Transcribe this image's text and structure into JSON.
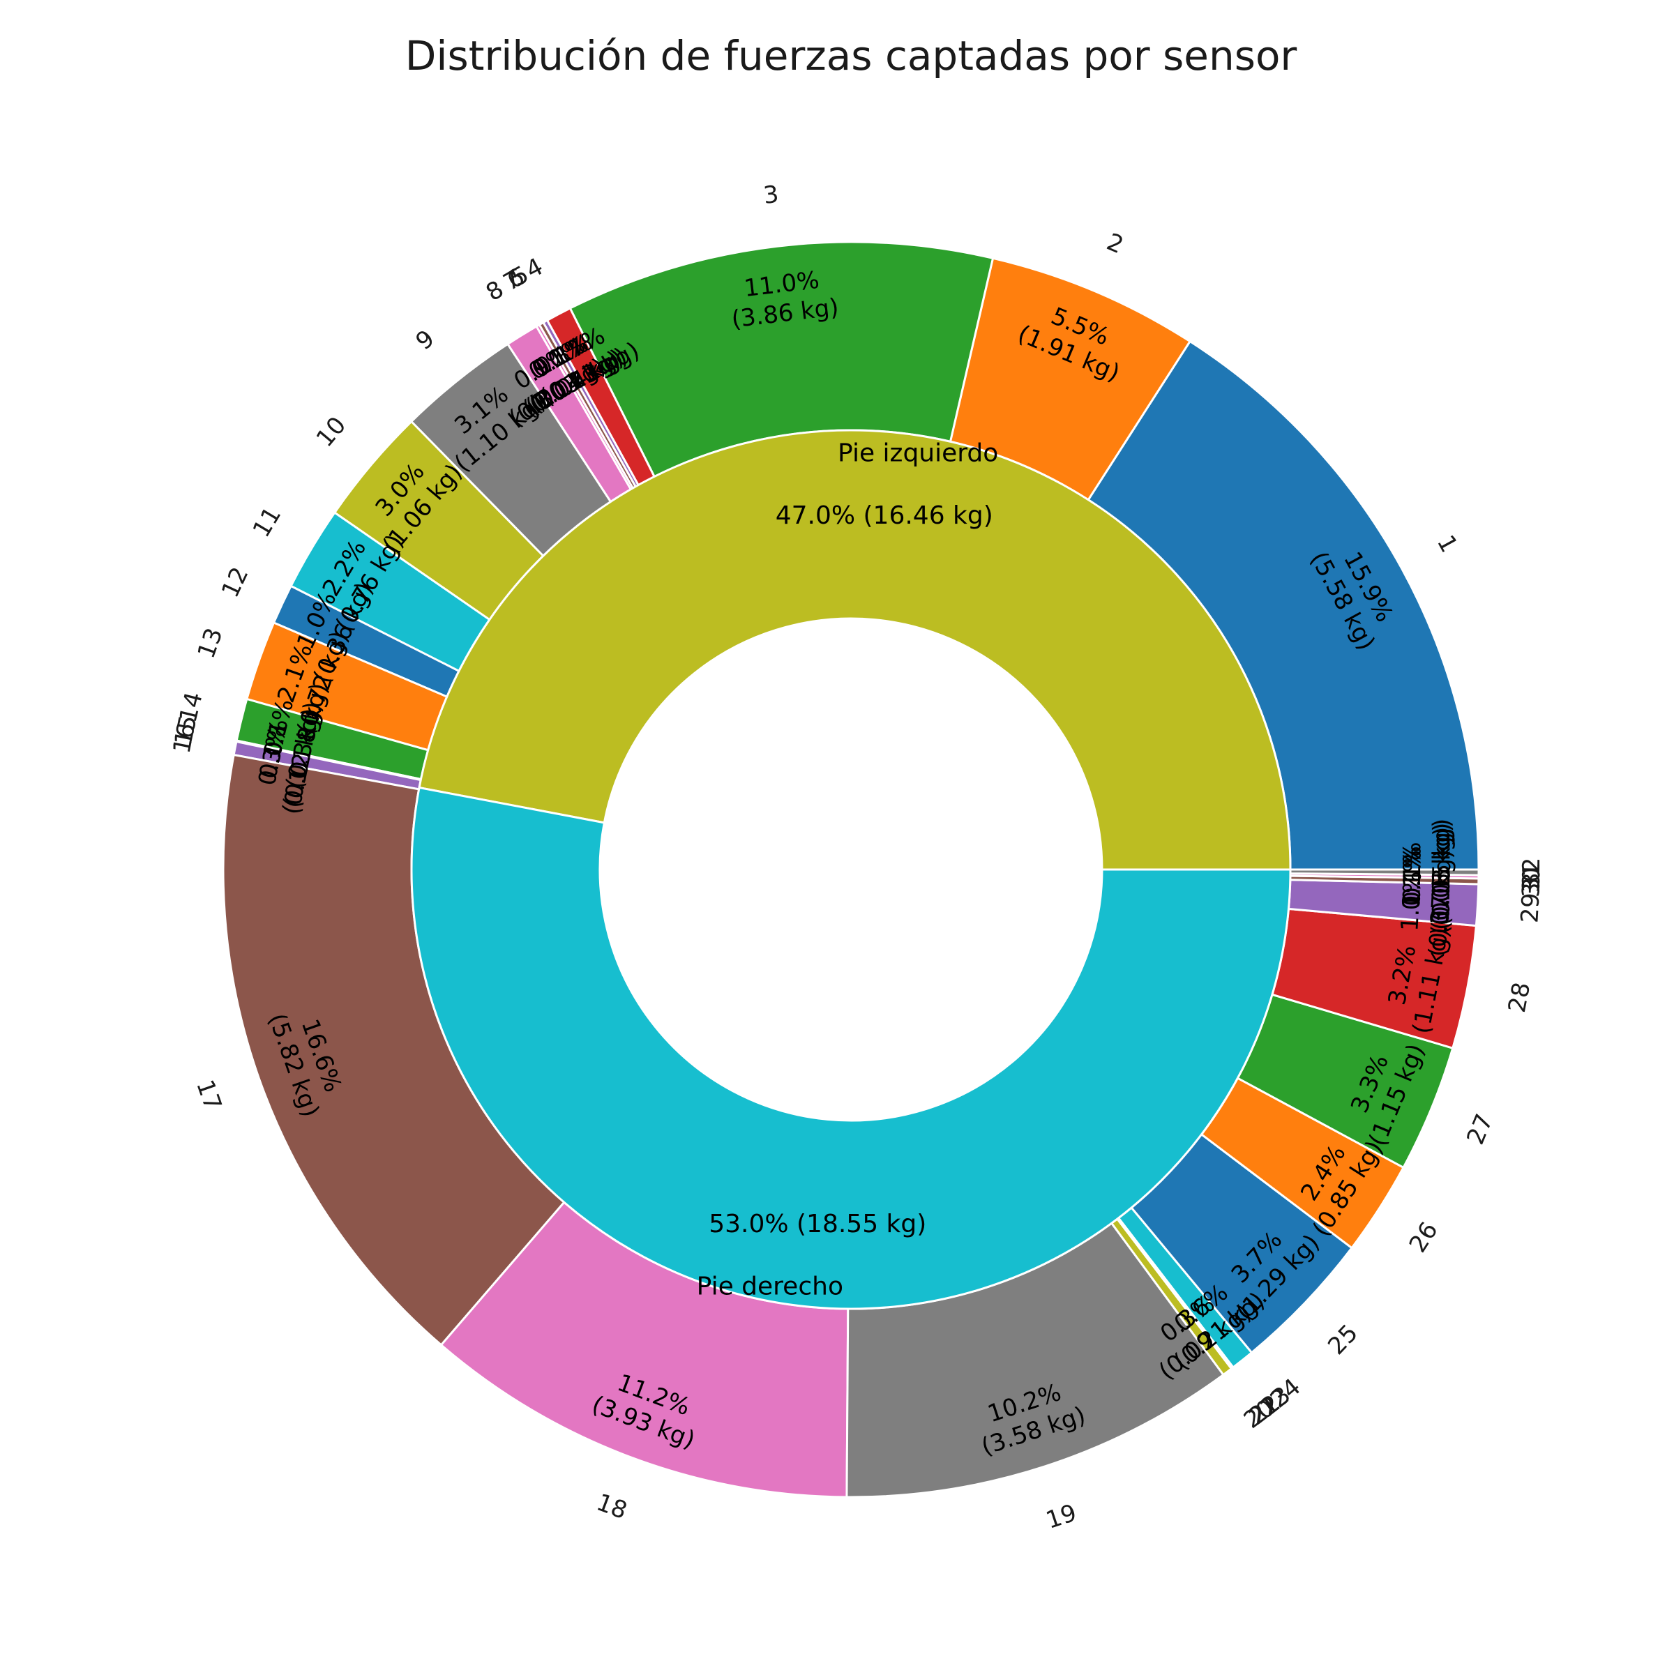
{
  "chart_data": {
    "type": "pie",
    "title": "Distribución de fuerzas captadas por sensor",
    "unit": "kg",
    "inner_ring": {
      "categories": [
        "Pie izquierdo",
        "Pie derecho"
      ],
      "values": [
        16.46,
        18.55
      ],
      "percent_labels": [
        "47.0% (16.46 kg)",
        "53.0% (18.55 kg)"
      ],
      "colors": [
        "#bcbd22",
        "#17becf"
      ]
    },
    "outer_ring": {
      "categories": [
        "1",
        "2",
        "3",
        "4",
        "5",
        "6",
        "7",
        "8",
        "9",
        "10",
        "11",
        "12",
        "13",
        "14",
        "15",
        "16",
        "17",
        "18",
        "19",
        "20",
        "21",
        "22",
        "23",
        "24",
        "25",
        "26",
        "27",
        "28",
        "29",
        "30",
        "31",
        "32"
      ],
      "values": [
        5.58,
        1.91,
        3.86,
        0.23,
        0.04,
        0.04,
        0.03,
        0.3,
        1.1,
        1.06,
        0.76,
        0.36,
        0.72,
        0.38,
        0.01,
        0.12,
        5.82,
        3.93,
        3.58,
        0.09,
        0.01,
        0.01,
        0.21,
        0.0,
        1.29,
        0.85,
        1.15,
        1.11,
        0.37,
        0.05,
        0.03,
        0.05
      ],
      "percent_labels": [
        "15.9%\n(5.58 kg)",
        "5.5%\n(1.91 kg)",
        "11.0%\n(3.86 kg)",
        "0.7%\n(0.23 kg)",
        "0.1%\n(0.04 kg)",
        "0.1%\n(0.04 kg)",
        "0.1%\n(0.03 kg)",
        "0.9%\n(0.30 kg)",
        "3.1%\n(1.10 kg)",
        "3.0%\n(1.06 kg)",
        "2.2%\n(0.76 kg)",
        "1.0%\n(0.36 kg)",
        "2.1%\n(0.72 kg)",
        "1.1%\n(0.38 kg)",
        "0.0%\n(0.01 kg)",
        "0.3%\n(0.12 kg)",
        "16.6%\n(5.82 kg)",
        "11.2%\n(3.93 kg)",
        "10.2%\n(3.58 kg)",
        "0.3%\n(0.09 kg)",
        "",
        "",
        "0.6%\n(0.21 kg)",
        "",
        "3.7%\n(1.29 kg)",
        "2.4%\n(0.85 kg)",
        "3.3%\n(1.15 kg)",
        "3.2%\n(1.11 kg)",
        "1.1%\n(0.37 kg)",
        "0.1%\n(0.05 kg)",
        "0.1%\n(0.03 kg)",
        "0.1%\n(0.05 kg)"
      ],
      "colors": [
        "#1f77b4",
        "#ff7f0e",
        "#2ca02c",
        "#d62728",
        "#9467bd",
        "#8c564b",
        "#e377c2",
        "#e377c2",
        "#7f7f7f",
        "#bcbd22",
        "#17becf",
        "#1f77b4",
        "#ff7f0e",
        "#2ca02c",
        "#d62728",
        "#9467bd",
        "#8c564b",
        "#e377c2",
        "#7f7f7f",
        "#bcbd22",
        "#17becf",
        "#1f77b4",
        "#17becf",
        "#1f77b4",
        "#1f77b4",
        "#ff7f0e",
        "#2ca02c",
        "#d62728",
        "#9467bd",
        "#8c564b",
        "#e377c2",
        "#7f7f7f"
      ]
    },
    "start_angle_deg": 0,
    "direction": "counterclockwise",
    "legend": "none",
    "edge_color": "#ffffff"
  }
}
